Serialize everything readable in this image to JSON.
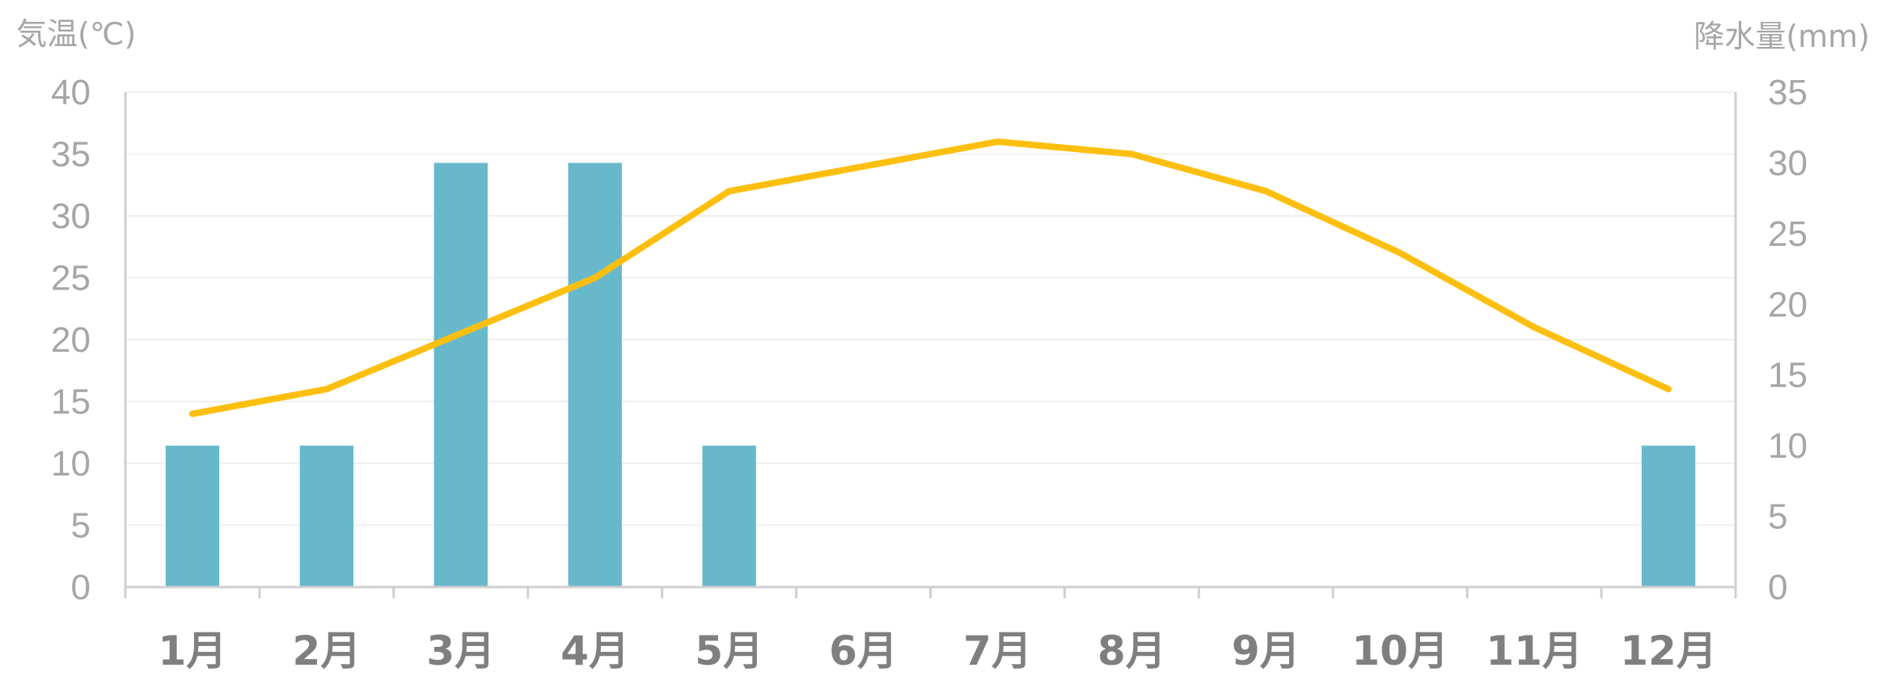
{
  "chart_data": {
    "type": "bar+line",
    "categories": [
      "1月",
      "2月",
      "3月",
      "4月",
      "5月",
      "6月",
      "7月",
      "8月",
      "9月",
      "10月",
      "11月",
      "12月"
    ],
    "left_axis": {
      "title": "気温(℃)",
      "range": [
        0,
        40
      ],
      "ticks": [
        0,
        5,
        10,
        15,
        20,
        25,
        30,
        35,
        40
      ]
    },
    "right_axis": {
      "title": "降水量(mm)",
      "range": [
        0,
        35
      ],
      "ticks": [
        0,
        5,
        10,
        15,
        20,
        25,
        30,
        35
      ]
    },
    "series": [
      {
        "type": "bar",
        "axis": "right",
        "color": "#68b8cb",
        "values": [
          10,
          10,
          30,
          30,
          10,
          0,
          0,
          0,
          0,
          0,
          0,
          10
        ]
      },
      {
        "type": "line",
        "axis": "left",
        "color": "#fdbf0f",
        "values": [
          14,
          16,
          20.5,
          25,
          32,
          34,
          36,
          35,
          32,
          27,
          21,
          16
        ]
      }
    ],
    "grid": true,
    "legend": "none"
  }
}
